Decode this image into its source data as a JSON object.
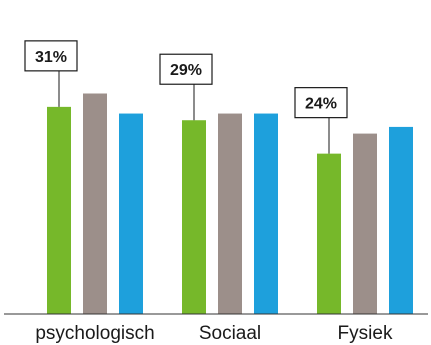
{
  "chart_data": {
    "type": "bar",
    "categories": [
      "psychologisch",
      "Sociaal",
      "Fysiek"
    ],
    "series": [
      {
        "values": [
          31,
          29,
          24
        ],
        "color": "#76b82a"
      },
      {
        "values": [
          33,
          30,
          27
        ],
        "color": "#9c8f8a"
      },
      {
        "values": [
          30,
          30,
          28
        ],
        "color": "#1ea0dc"
      }
    ],
    "callouts": [
      "31%",
      "29%",
      "24%"
    ],
    "ylim": [
      0,
      44
    ],
    "title": "",
    "xlabel": "",
    "ylabel": "",
    "grid": false,
    "legend": false
  }
}
